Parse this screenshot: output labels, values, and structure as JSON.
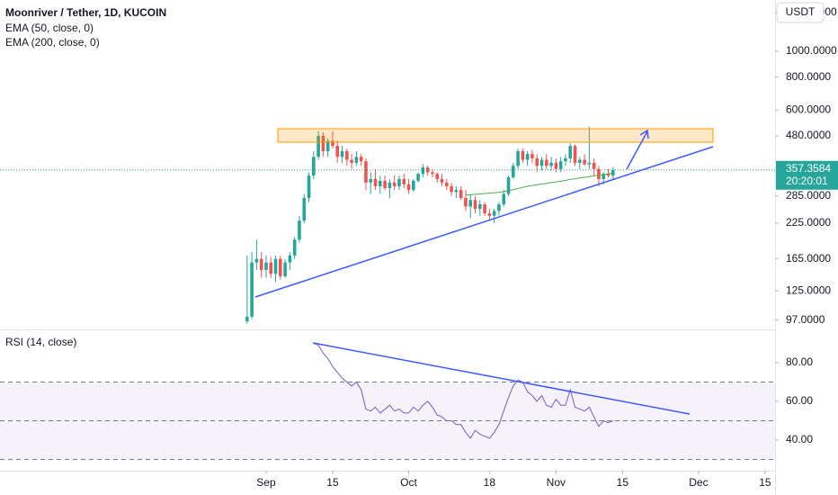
{
  "chart_data": {
    "type": "candlestick",
    "title": "Moonriver / Tether, 1D, KUCOIN",
    "currency": "USDT",
    "log_scale": true,
    "up_color": "#26a69a",
    "down_color": "#ef5350",
    "x": [
      240,
      241,
      242,
      243,
      244,
      245,
      246,
      247,
      248,
      249,
      250,
      251,
      252,
      253,
      254,
      255,
      256,
      257,
      258,
      259,
      260,
      261,
      262,
      263,
      264,
      265,
      266,
      267,
      268,
      269,
      270,
      271,
      272,
      273,
      274,
      275,
      276,
      277,
      278,
      279,
      280,
      281,
      282,
      283,
      284,
      285,
      286,
      287,
      288,
      289,
      290,
      291,
      292,
      293,
      294,
      295,
      296,
      297,
      298,
      299,
      300,
      301,
      302,
      303,
      304,
      305,
      306,
      307,
      308,
      309,
      310,
      311,
      312,
      313,
      314,
      315,
      316,
      317
    ],
    "ohlc": [
      [
        96,
        170,
        94,
        100
      ],
      [
        100,
        175,
        98,
        160
      ],
      [
        160,
        195,
        150,
        165
      ],
      [
        165,
        175,
        140,
        150
      ],
      [
        150,
        170,
        140,
        160
      ],
      [
        160,
        168,
        140,
        145
      ],
      [
        145,
        170,
        135,
        165
      ],
      [
        165,
        170,
        138,
        142
      ],
      [
        142,
        165,
        140,
        160
      ],
      [
        160,
        175,
        150,
        170
      ],
      [
        170,
        200,
        165,
        195
      ],
      [
        195,
        240,
        190,
        230
      ],
      [
        230,
        290,
        225,
        280
      ],
      [
        280,
        350,
        270,
        340
      ],
      [
        340,
        420,
        330,
        400
      ],
      [
        400,
        500,
        390,
        480
      ],
      [
        480,
        495,
        400,
        420
      ],
      [
        420,
        470,
        400,
        460
      ],
      [
        460,
        500,
        430,
        440
      ],
      [
        440,
        460,
        380,
        400
      ],
      [
        400,
        440,
        380,
        420
      ],
      [
        420,
        430,
        370,
        390
      ],
      [
        390,
        410,
        360,
        380
      ],
      [
        380,
        420,
        370,
        400
      ],
      [
        400,
        410,
        370,
        385
      ],
      [
        385,
        395,
        300,
        320
      ],
      [
        320,
        350,
        290,
        330
      ],
      [
        330,
        360,
        300,
        310
      ],
      [
        310,
        340,
        290,
        325
      ],
      [
        325,
        340,
        300,
        305
      ],
      [
        305,
        330,
        280,
        320
      ],
      [
        320,
        340,
        300,
        310
      ],
      [
        310,
        340,
        300,
        330
      ],
      [
        330,
        345,
        305,
        315
      ],
      [
        315,
        330,
        290,
        300
      ],
      [
        300,
        330,
        295,
        325
      ],
      [
        325,
        350,
        320,
        345
      ],
      [
        345,
        375,
        335,
        365
      ],
      [
        365,
        370,
        340,
        350
      ],
      [
        350,
        360,
        335,
        345
      ],
      [
        345,
        350,
        320,
        330
      ],
      [
        330,
        345,
        310,
        320
      ],
      [
        320,
        330,
        300,
        310
      ],
      [
        310,
        320,
        285,
        295
      ],
      [
        295,
        310,
        280,
        300
      ],
      [
        300,
        310,
        275,
        280
      ],
      [
        280,
        300,
        250,
        260
      ],
      [
        260,
        290,
        235,
        275
      ],
      [
        275,
        285,
        245,
        255
      ],
      [
        255,
        275,
        240,
        265
      ],
      [
        265,
        270,
        240,
        245
      ],
      [
        245,
        255,
        230,
        240
      ],
      [
        240,
        255,
        225,
        250
      ],
      [
        250,
        270,
        240,
        265
      ],
      [
        265,
        300,
        260,
        290
      ],
      [
        290,
        340,
        285,
        335
      ],
      [
        335,
        380,
        330,
        370
      ],
      [
        370,
        430,
        360,
        420
      ],
      [
        420,
        430,
        380,
        390
      ],
      [
        390,
        420,
        370,
        410
      ],
      [
        410,
        425,
        380,
        395
      ],
      [
        395,
        410,
        350,
        370
      ],
      [
        370,
        400,
        355,
        390
      ],
      [
        390,
        410,
        360,
        370
      ],
      [
        370,
        400,
        355,
        380
      ],
      [
        380,
        395,
        350,
        360
      ],
      [
        360,
        400,
        350,
        385
      ],
      [
        385,
        410,
        370,
        395
      ],
      [
        395,
        450,
        380,
        440
      ],
      [
        440,
        445,
        370,
        380
      ],
      [
        380,
        400,
        360,
        390
      ],
      [
        390,
        410,
        370,
        375
      ],
      [
        375,
        520,
        360,
        380
      ],
      [
        380,
        395,
        340,
        360
      ],
      [
        360,
        370,
        310,
        330
      ],
      [
        330,
        350,
        315,
        345
      ],
      [
        345,
        360,
        335,
        340
      ],
      [
        340,
        365,
        330,
        357
      ]
    ],
    "xlim": [
      188,
      351.1
    ],
    "xticks": [
      {
        "value": 244,
        "label": "Sep"
      },
      {
        "value": 258,
        "label": "15"
      },
      {
        "value": 274,
        "label": "Oct"
      },
      {
        "value": 291,
        "label": "18"
      },
      {
        "value": 305,
        "label": "Nov"
      },
      {
        "value": 319,
        "label": "15"
      },
      {
        "value": 335,
        "label": "Dec"
      },
      {
        "value": 349,
        "label": "15"
      }
    ],
    "ylim": [
      89.5,
      1561
    ],
    "yticks": [
      {
        "value": 97,
        "label": "97.0000"
      },
      {
        "value": 125,
        "label": "125.0000"
      },
      {
        "value": 165,
        "label": "165.0000"
      },
      {
        "value": 225,
        "label": "225.0000"
      },
      {
        "value": 285,
        "label": "285.0000"
      },
      {
        "value": 480,
        "label": "480.0000"
      },
      {
        "value": 600,
        "label": "600.0000"
      },
      {
        "value": 800,
        "label": "800.0000"
      },
      {
        "value": 1000,
        "label": "1000.0000"
      },
      {
        "value": 1400,
        "label": "1400.0000"
      }
    ],
    "series": [
      {
        "name": "EMA (50, close, 0)",
        "color": "#4caf50",
        "x": [
          286,
          287,
          288,
          289,
          290,
          291,
          292,
          293,
          294,
          295,
          296,
          297,
          298,
          299,
          300,
          301,
          302,
          303,
          304,
          305,
          306,
          307,
          308,
          309,
          310,
          311,
          312,
          313,
          314,
          315,
          316,
          317
        ],
        "values": [
          287,
          288,
          289,
          290,
          291,
          292,
          293,
          294,
          296,
          298,
          301,
          304,
          307,
          310,
          312,
          314,
          316,
          318,
          320,
          322,
          324,
          326,
          329,
          331,
          333,
          335,
          337,
          339,
          341,
          343,
          345,
          348
        ]
      },
      {
        "name": "EMA (200, close, 0)"
      }
    ],
    "last_price": {
      "value": 357.3584,
      "label": "357.3584"
    },
    "countdown": "20:20:01",
    "rsi": {
      "title": "RSI (14, close)",
      "color": "#7e57c2",
      "x": [
        254,
        255,
        256,
        257,
        258,
        259,
        260,
        261,
        262,
        263,
        264,
        265,
        266,
        267,
        268,
        269,
        270,
        271,
        272,
        273,
        274,
        275,
        276,
        277,
        278,
        279,
        280,
        281,
        282,
        283,
        284,
        285,
        286,
        287,
        288,
        289,
        290,
        291,
        292,
        293,
        294,
        295,
        296,
        297,
        298,
        299,
        300,
        301,
        302,
        303,
        304,
        305,
        306,
        307,
        308,
        309,
        310,
        311,
        312,
        313,
        314,
        315,
        316,
        317
      ],
      "values": [
        90,
        89,
        85,
        82,
        78,
        75,
        72,
        70,
        68,
        70,
        66,
        56,
        55,
        57,
        54,
        56,
        58,
        55,
        56,
        54,
        54,
        57,
        55,
        58,
        60,
        57,
        53,
        52,
        50,
        50,
        48,
        48,
        44,
        41,
        45,
        43,
        42,
        41,
        44,
        48,
        55,
        62,
        68,
        71,
        70,
        65,
        63,
        60,
        63,
        58,
        57,
        61,
        58,
        58,
        66,
        57,
        56,
        55,
        57,
        52,
        47,
        50,
        49,
        50
      ],
      "ylim": [
        24.2,
        96.7
      ],
      "yticks": [
        {
          "value": 40,
          "label": "40.00"
        },
        {
          "value": 60,
          "label": "60.00"
        },
        {
          "value": 80,
          "label": "80.00"
        }
      ],
      "levels": [
        70,
        50,
        30
      ]
    }
  }
}
